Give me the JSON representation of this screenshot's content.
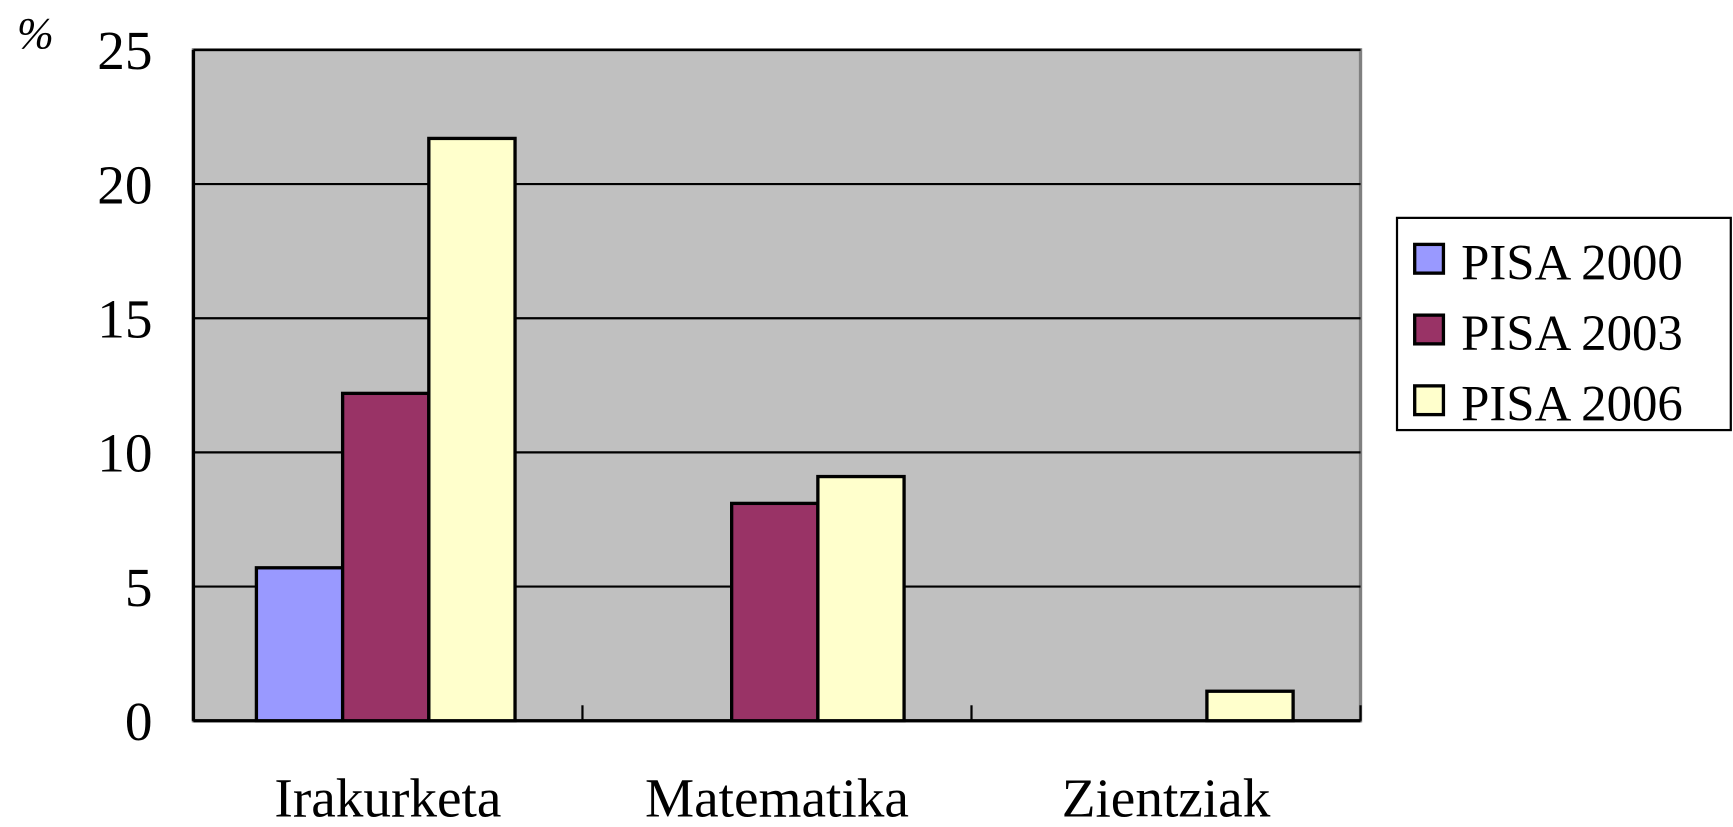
{
  "chart_data": {
    "type": "bar",
    "y_label": "%",
    "categories": [
      "Irakurketa",
      "Matematika",
      "Zientziak"
    ],
    "series": [
      {
        "name": "PISA 2000",
        "color": "#9999ff",
        "values": [
          5.7,
          null,
          null
        ]
      },
      {
        "name": "PISA 2003",
        "color": "#993366",
        "values": [
          12.2,
          8.1,
          null
        ]
      },
      {
        "name": "PISA 2006",
        "color": "#ffffcc",
        "values": [
          21.7,
          9.1,
          1.1
        ]
      }
    ],
    "ylim": [
      0,
      25
    ],
    "yticks": [
      0,
      5,
      10,
      15,
      20,
      25
    ],
    "grid": true,
    "plot_background": "#c0c0c0",
    "legend": "right"
  }
}
